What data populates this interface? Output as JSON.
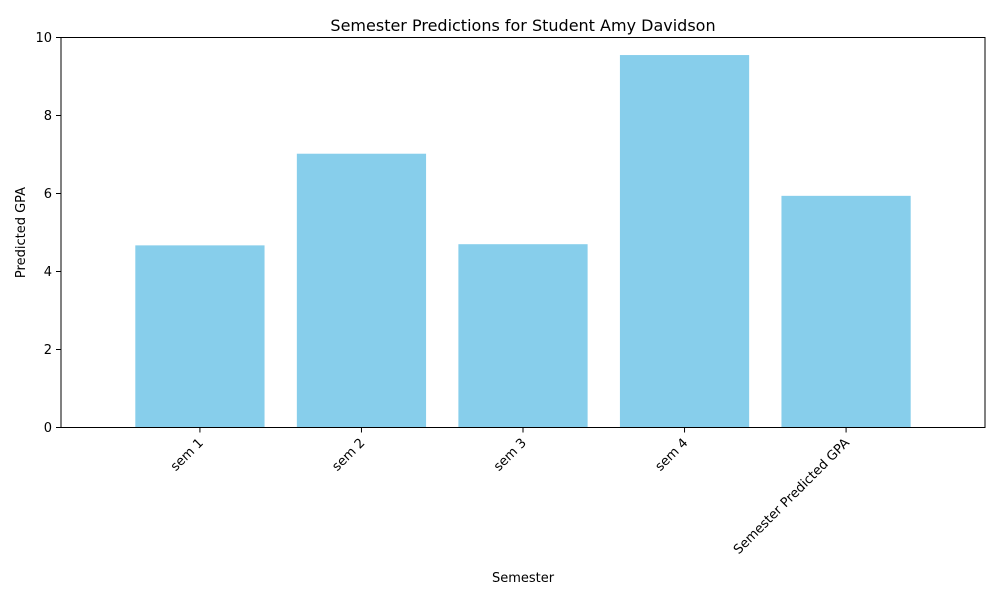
{
  "chart_data": {
    "type": "bar",
    "title": "Semester Predictions for Student Amy Davidson",
    "xlabel": "Semester",
    "ylabel": "Predicted GPA",
    "categories": [
      "sem 1",
      "sem 2",
      "sem 3",
      "sem 4",
      "Semester Predicted GPA"
    ],
    "values": [
      4.67,
      7.02,
      4.7,
      9.55,
      5.94
    ],
    "ylim": [
      0,
      10
    ],
    "yticks": [
      "0",
      "2",
      "4",
      "6",
      "8",
      "10"
    ],
    "bar_color": "#87CEEB",
    "grid": false,
    "legend": "none"
  }
}
